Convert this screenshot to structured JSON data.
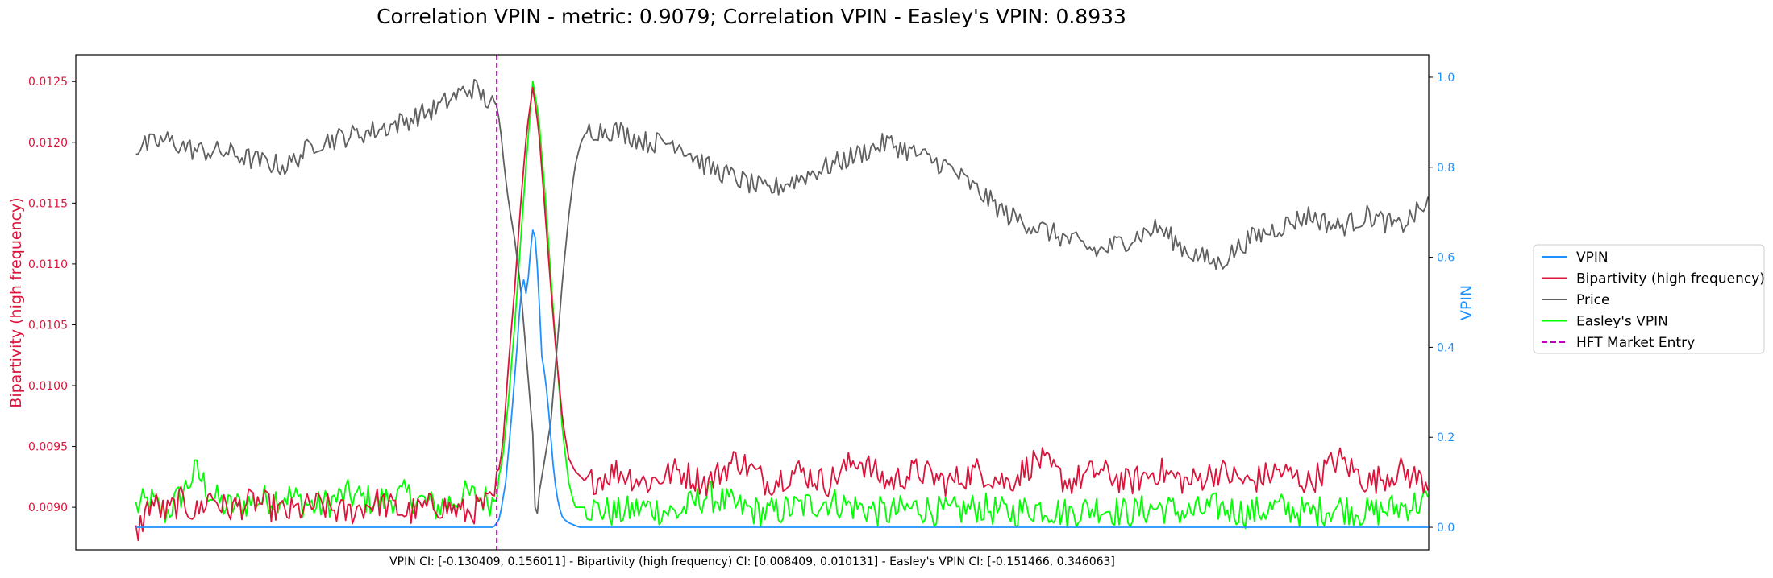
{
  "chart_data": {
    "type": "line",
    "title": "Correlation VPIN - metric: 0.9079; Correlation VPIN - Easley's VPIN: 0.8933",
    "footer": "VPIN CI: [-0.130409, 0.156011] - Bipartivity (high frequency) CI: [0.008409, 0.010131] - Easley's VPIN CI: [-0.151466, 0.346063]",
    "ylabel_left": "Bipartivity (high frequency)",
    "ylabel_right": "VPIN",
    "ylim_left": [
      0.00865,
      0.01272
    ],
    "ylim_right": [
      -0.05,
      1.05
    ],
    "xlim": [
      -40,
      860
    ],
    "yticks_left": [
      "0.0125",
      "0.0120",
      "0.0115",
      "0.0110",
      "0.0105",
      "0.0100",
      "0.0095",
      "0.0090"
    ],
    "yticks_right": [
      "1.0",
      "0.8",
      "0.6",
      "0.4",
      "0.2",
      "0.0"
    ],
    "grid": false,
    "legend_position": "outside-right",
    "event": {
      "name": "HFT Market Entry",
      "x": 240
    },
    "colors": {
      "left_axis": "#dc143c",
      "right_axis": "#1e90ff",
      "vpin": "#1e90ff",
      "bipartivity": "#dc143c",
      "price": "#606060",
      "easley": "#00ff00",
      "event": "#c000c0"
    },
    "series": [
      {
        "name": "VPIN",
        "axis": "right",
        "color": "#1e90ff",
        "points": [
          [
            0,
            0.0
          ],
          [
            100,
            0.0
          ],
          [
            238,
            0.0
          ],
          [
            242,
            0.02
          ],
          [
            246,
            0.1
          ],
          [
            250,
            0.25
          ],
          [
            254,
            0.42
          ],
          [
            256,
            0.52
          ],
          [
            258,
            0.55
          ],
          [
            260,
            0.51
          ],
          [
            262,
            0.6
          ],
          [
            264,
            0.66
          ],
          [
            266,
            0.64
          ],
          [
            268,
            0.52
          ],
          [
            270,
            0.38
          ],
          [
            272,
            0.34
          ],
          [
            274,
            0.28
          ],
          [
            276,
            0.2
          ],
          [
            278,
            0.12
          ],
          [
            280,
            0.07
          ],
          [
            282,
            0.04
          ],
          [
            284,
            0.02
          ],
          [
            288,
            0.01
          ],
          [
            295,
            0.0
          ],
          [
            500,
            0.0
          ],
          [
            860,
            0.0
          ]
        ]
      },
      {
        "name": "Bipartivity (high frequency)",
        "axis": "left",
        "color": "#dc143c",
        "points": [
          [
            0,
            0.00877
          ],
          [
            10,
            0.00905
          ],
          [
            20,
            0.00895
          ],
          [
            30,
            0.00905
          ],
          [
            40,
            0.00895
          ],
          [
            50,
            0.0091
          ],
          [
            60,
            0.00898
          ],
          [
            80,
            0.00905
          ],
          [
            100,
            0.00895
          ],
          [
            120,
            0.00902
          ],
          [
            140,
            0.00895
          ],
          [
            160,
            0.00905
          ],
          [
            180,
            0.00895
          ],
          [
            200,
            0.00902
          ],
          [
            220,
            0.00895
          ],
          [
            238,
            0.00905
          ],
          [
            244,
            0.0095
          ],
          [
            248,
            0.0102
          ],
          [
            252,
            0.0108
          ],
          [
            256,
            0.0115
          ],
          [
            260,
            0.0121
          ],
          [
            264,
            0.01245
          ],
          [
            268,
            0.0121
          ],
          [
            272,
            0.01145
          ],
          [
            276,
            0.0108
          ],
          [
            280,
            0.0102
          ],
          [
            284,
            0.0097
          ],
          [
            288,
            0.0094
          ],
          [
            292,
            0.0093
          ],
          [
            300,
            0.0092
          ],
          [
            320,
            0.0093
          ],
          [
            340,
            0.0092
          ],
          [
            360,
            0.0093
          ],
          [
            380,
            0.0092
          ],
          [
            400,
            0.0094
          ],
          [
            420,
            0.0092
          ],
          [
            440,
            0.0093
          ],
          [
            460,
            0.0092
          ],
          [
            480,
            0.0094
          ],
          [
            500,
            0.0092
          ],
          [
            520,
            0.0093
          ],
          [
            540,
            0.0092
          ],
          [
            560,
            0.0093
          ],
          [
            580,
            0.0092
          ],
          [
            600,
            0.0094
          ],
          [
            620,
            0.0092
          ],
          [
            640,
            0.0093
          ],
          [
            660,
            0.0092
          ],
          [
            680,
            0.0093
          ],
          [
            700,
            0.0092
          ],
          [
            720,
            0.0093
          ],
          [
            740,
            0.0092
          ],
          [
            760,
            0.0093
          ],
          [
            780,
            0.0092
          ],
          [
            800,
            0.0094
          ],
          [
            820,
            0.0092
          ],
          [
            840,
            0.0093
          ],
          [
            860,
            0.0092
          ]
        ]
      },
      {
        "name": "Price",
        "axis": "left",
        "color": "#606060",
        "points": [
          [
            0,
            0.01195
          ],
          [
            20,
            0.01202
          ],
          [
            40,
            0.01193
          ],
          [
            60,
            0.01192
          ],
          [
            80,
            0.01185
          ],
          [
            100,
            0.0118
          ],
          [
            120,
            0.012
          ],
          [
            140,
            0.01205
          ],
          [
            160,
            0.0121
          ],
          [
            180,
            0.01218
          ],
          [
            200,
            0.01228
          ],
          [
            215,
            0.0124
          ],
          [
            225,
            0.01245
          ],
          [
            232,
            0.01236
          ],
          [
            238,
            0.0123
          ],
          [
            242,
            0.01218
          ],
          [
            245,
            0.0118
          ],
          [
            248,
            0.0115
          ],
          [
            252,
            0.0112
          ],
          [
            256,
            0.0108
          ],
          [
            260,
            0.0102
          ],
          [
            264,
            0.0096
          ],
          [
            266,
            0.0088
          ],
          [
            268,
            0.0091
          ],
          [
            272,
            0.0094
          ],
          [
            276,
            0.0097
          ],
          [
            280,
            0.0103
          ],
          [
            284,
            0.0109
          ],
          [
            288,
            0.0114
          ],
          [
            292,
            0.0118
          ],
          [
            296,
            0.012
          ],
          [
            300,
            0.0121
          ],
          [
            320,
            0.0121
          ],
          [
            340,
            0.012
          ],
          [
            360,
            0.012
          ],
          [
            380,
            0.0118
          ],
          [
            400,
            0.0117
          ],
          [
            420,
            0.0116
          ],
          [
            440,
            0.0117
          ],
          [
            460,
            0.0118
          ],
          [
            480,
            0.0119
          ],
          [
            500,
            0.012
          ],
          [
            520,
            0.0119
          ],
          [
            540,
            0.0118
          ],
          [
            560,
            0.0116
          ],
          [
            580,
            0.0114
          ],
          [
            600,
            0.0113
          ],
          [
            620,
            0.0112
          ],
          [
            640,
            0.0111
          ],
          [
            660,
            0.0112
          ],
          [
            680,
            0.0113
          ],
          [
            700,
            0.0111
          ],
          [
            720,
            0.011
          ],
          [
            740,
            0.0112
          ],
          [
            760,
            0.0113
          ],
          [
            780,
            0.0114
          ],
          [
            800,
            0.0113
          ],
          [
            820,
            0.0114
          ],
          [
            840,
            0.0113
          ],
          [
            850,
            0.0114
          ],
          [
            860,
            0.0115
          ]
        ]
      },
      {
        "name": "Easley's VPIN",
        "axis": "left",
        "color": "#00ff00",
        "points": [
          [
            0,
            0.009
          ],
          [
            10,
            0.00905
          ],
          [
            20,
            0.00895
          ],
          [
            30,
            0.0091
          ],
          [
            40,
            0.0093
          ],
          [
            50,
            0.0091
          ],
          [
            60,
            0.009
          ],
          [
            80,
            0.00905
          ],
          [
            100,
            0.0091
          ],
          [
            120,
            0.009
          ],
          [
            140,
            0.0091
          ],
          [
            160,
            0.00905
          ],
          [
            180,
            0.0091
          ],
          [
            200,
            0.009
          ],
          [
            220,
            0.0091
          ],
          [
            238,
            0.00905
          ],
          [
            244,
            0.0094
          ],
          [
            248,
            0.0099
          ],
          [
            252,
            0.0105
          ],
          [
            256,
            0.0112
          ],
          [
            260,
            0.0119
          ],
          [
            264,
            0.0125
          ],
          [
            268,
            0.0122
          ],
          [
            272,
            0.0116
          ],
          [
            276,
            0.0109
          ],
          [
            280,
            0.0102
          ],
          [
            284,
            0.0096
          ],
          [
            288,
            0.0092
          ],
          [
            292,
            0.009
          ],
          [
            300,
            0.009
          ],
          [
            320,
            0.00895
          ],
          [
            340,
            0.009
          ],
          [
            360,
            0.00895
          ],
          [
            380,
            0.0091
          ],
          [
            400,
            0.009
          ],
          [
            420,
            0.00895
          ],
          [
            440,
            0.009
          ],
          [
            460,
            0.00905
          ],
          [
            480,
            0.009
          ],
          [
            500,
            0.00895
          ],
          [
            520,
            0.009
          ],
          [
            540,
            0.00895
          ],
          [
            560,
            0.009
          ],
          [
            580,
            0.00895
          ],
          [
            600,
            0.009
          ],
          [
            620,
            0.00895
          ],
          [
            640,
            0.009
          ],
          [
            660,
            0.00895
          ],
          [
            680,
            0.009
          ],
          [
            700,
            0.00895
          ],
          [
            720,
            0.009
          ],
          [
            740,
            0.00895
          ],
          [
            760,
            0.009
          ],
          [
            780,
            0.00895
          ],
          [
            800,
            0.009
          ],
          [
            820,
            0.00895
          ],
          [
            840,
            0.009
          ],
          [
            860,
            0.00905
          ]
        ]
      }
    ],
    "legend": [
      "VPIN",
      "Bipartivity (high frequency)",
      "Price",
      "Easley's VPIN",
      "HFT Market Entry"
    ]
  }
}
